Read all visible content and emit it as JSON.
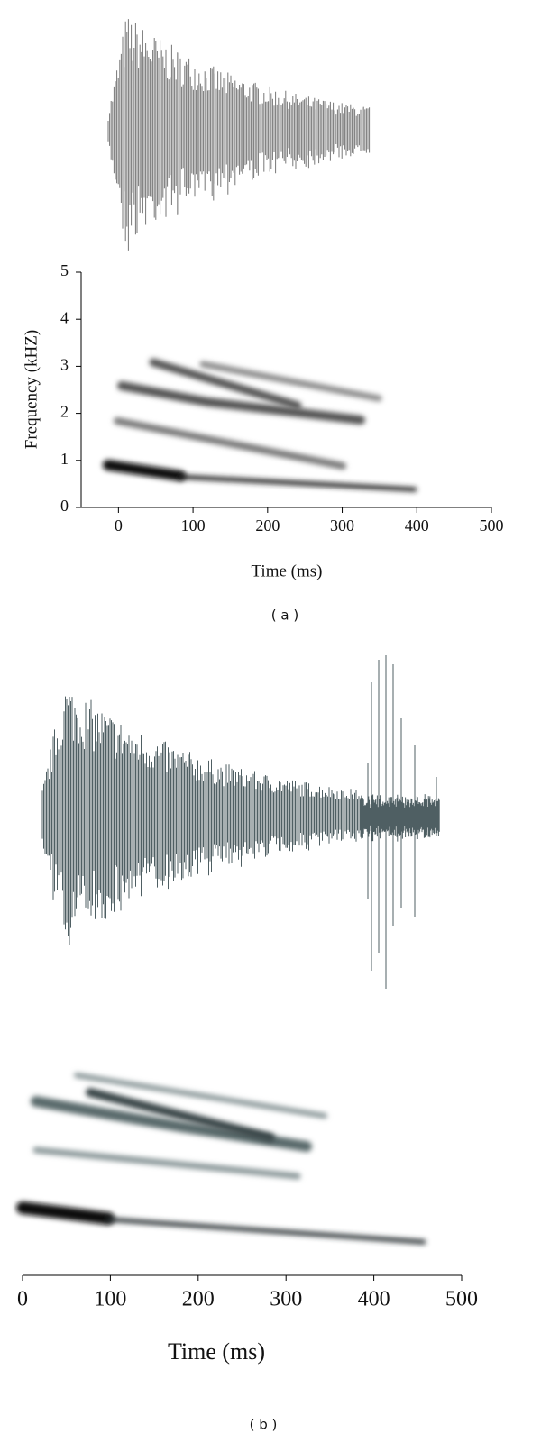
{
  "chart_data": [
    {
      "type": "spectrogram",
      "x_label": "Time (ms)",
      "y_label": "Frequency (kHZ)",
      "caption": "( a )",
      "xlim": [
        -50,
        500
      ],
      "xticks": [
        0,
        100,
        200,
        300,
        400,
        500
      ],
      "ylim": [
        0,
        5
      ],
      "yticks": [
        0,
        1,
        2,
        3,
        4,
        5
      ]
    },
    {
      "type": "spectrogram",
      "x_label": "Time (ms)",
      "caption": "( b )",
      "xlim": [
        0,
        500
      ],
      "xticks": [
        0,
        100,
        200,
        300,
        400,
        500
      ]
    }
  ]
}
